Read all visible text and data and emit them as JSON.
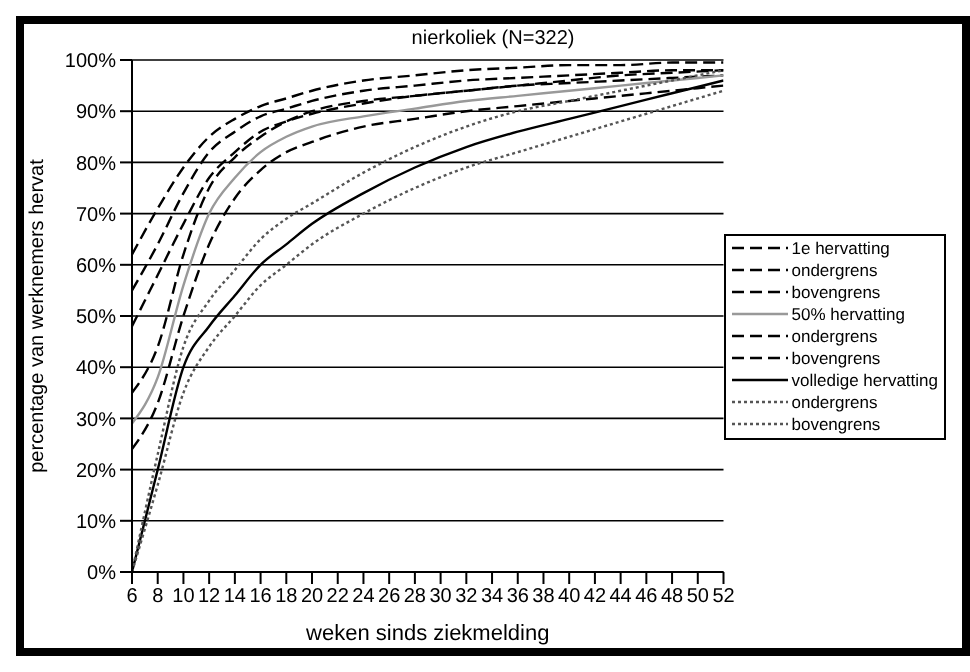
{
  "chart_data": {
    "type": "line",
    "title": "nierkoliek (N=322)",
    "xlabel": "weken sinds ziekmelding",
    "ylabel": "percentage van werknemers hervat",
    "x": [
      6,
      8,
      10,
      12,
      14,
      16,
      18,
      20,
      24,
      28,
      32,
      36,
      40,
      44,
      48,
      52
    ],
    "xlim": [
      6,
      52
    ],
    "xticks": [
      6,
      8,
      10,
      12,
      14,
      16,
      18,
      20,
      22,
      24,
      26,
      28,
      30,
      32,
      34,
      36,
      38,
      40,
      42,
      44,
      46,
      48,
      50,
      52
    ],
    "ylim": [
      0,
      100
    ],
    "yticks": [
      {
        "value": 0,
        "label": "0%"
      },
      {
        "value": 10,
        "label": "10%"
      },
      {
        "value": 20,
        "label": "20%"
      },
      {
        "value": 30,
        "label": "30%"
      },
      {
        "value": 40,
        "label": "40%"
      },
      {
        "value": 50,
        "label": "50%"
      },
      {
        "value": 60,
        "label": "60%"
      },
      {
        "value": 70,
        "label": "70%"
      },
      {
        "value": 80,
        "label": "80%"
      },
      {
        "value": 90,
        "label": "90%"
      },
      {
        "value": 100,
        "label": "100%"
      }
    ],
    "grid": "y",
    "legend": "right",
    "marker": "none",
    "series": [
      {
        "name": "1e hervatting",
        "color": "#000000",
        "line_style": "dashed",
        "values": [
          55,
          64,
          74,
          82,
          86,
          89,
          90.5,
          92,
          94,
          95,
          96,
          96.5,
          97,
          97.5,
          98,
          98
        ]
      },
      {
        "name": "ondergrens",
        "color": "#000000",
        "line_style": "dashed",
        "values": [
          48,
          58,
          68,
          77,
          82,
          86,
          88,
          89.5,
          91.5,
          93,
          94,
          95,
          95.5,
          96,
          96.5,
          97
        ]
      },
      {
        "name": "bovengrens",
        "color": "#000000",
        "line_style": "dashed",
        "values": [
          62,
          71,
          79,
          85,
          88.5,
          91,
          92.5,
          94,
          96,
          97,
          98,
          98.5,
          99,
          99,
          99.5,
          99.5
        ]
      },
      {
        "name": "50% hervatting",
        "color": "#999999",
        "line_style": "solid",
        "values": [
          29,
          38,
          56,
          70,
          77,
          82,
          85,
          87,
          89,
          90.5,
          92,
          93,
          94,
          95,
          96,
          97
        ]
      },
      {
        "name": "ondergrens",
        "color": "#000000",
        "line_style": "dashed",
        "values": [
          24,
          33,
          50,
          64,
          73,
          78.5,
          82,
          84,
          87,
          88.5,
          90,
          91,
          92,
          93,
          94,
          95
        ]
      },
      {
        "name": "bovengrens",
        "color": "#000000",
        "line_style": "dashed",
        "values": [
          35,
          44,
          62,
          75,
          81,
          85,
          88,
          90,
          92,
          93,
          94,
          95,
          96,
          97,
          97.5,
          98
        ]
      },
      {
        "name": "volledige hervatting",
        "color": "#000000",
        "line_style": "solid",
        "values": [
          0,
          20,
          40,
          48,
          54,
          60,
          64,
          68,
          74,
          79,
          83,
          86,
          88.5,
          91,
          93.5,
          96
        ]
      },
      {
        "name": "ondergrens",
        "color": "#555555",
        "line_style": "dotted",
        "values": [
          0,
          17,
          35,
          44,
          50,
          56,
          60,
          64,
          70,
          75,
          79,
          82,
          85,
          88,
          91,
          94
        ]
      },
      {
        "name": "bovengrens",
        "color": "#555555",
        "line_style": "dotted",
        "values": [
          0,
          23,
          44,
          53,
          59,
          65,
          69,
          72,
          78,
          83,
          87,
          90,
          92,
          94,
          96,
          98
        ]
      }
    ]
  }
}
